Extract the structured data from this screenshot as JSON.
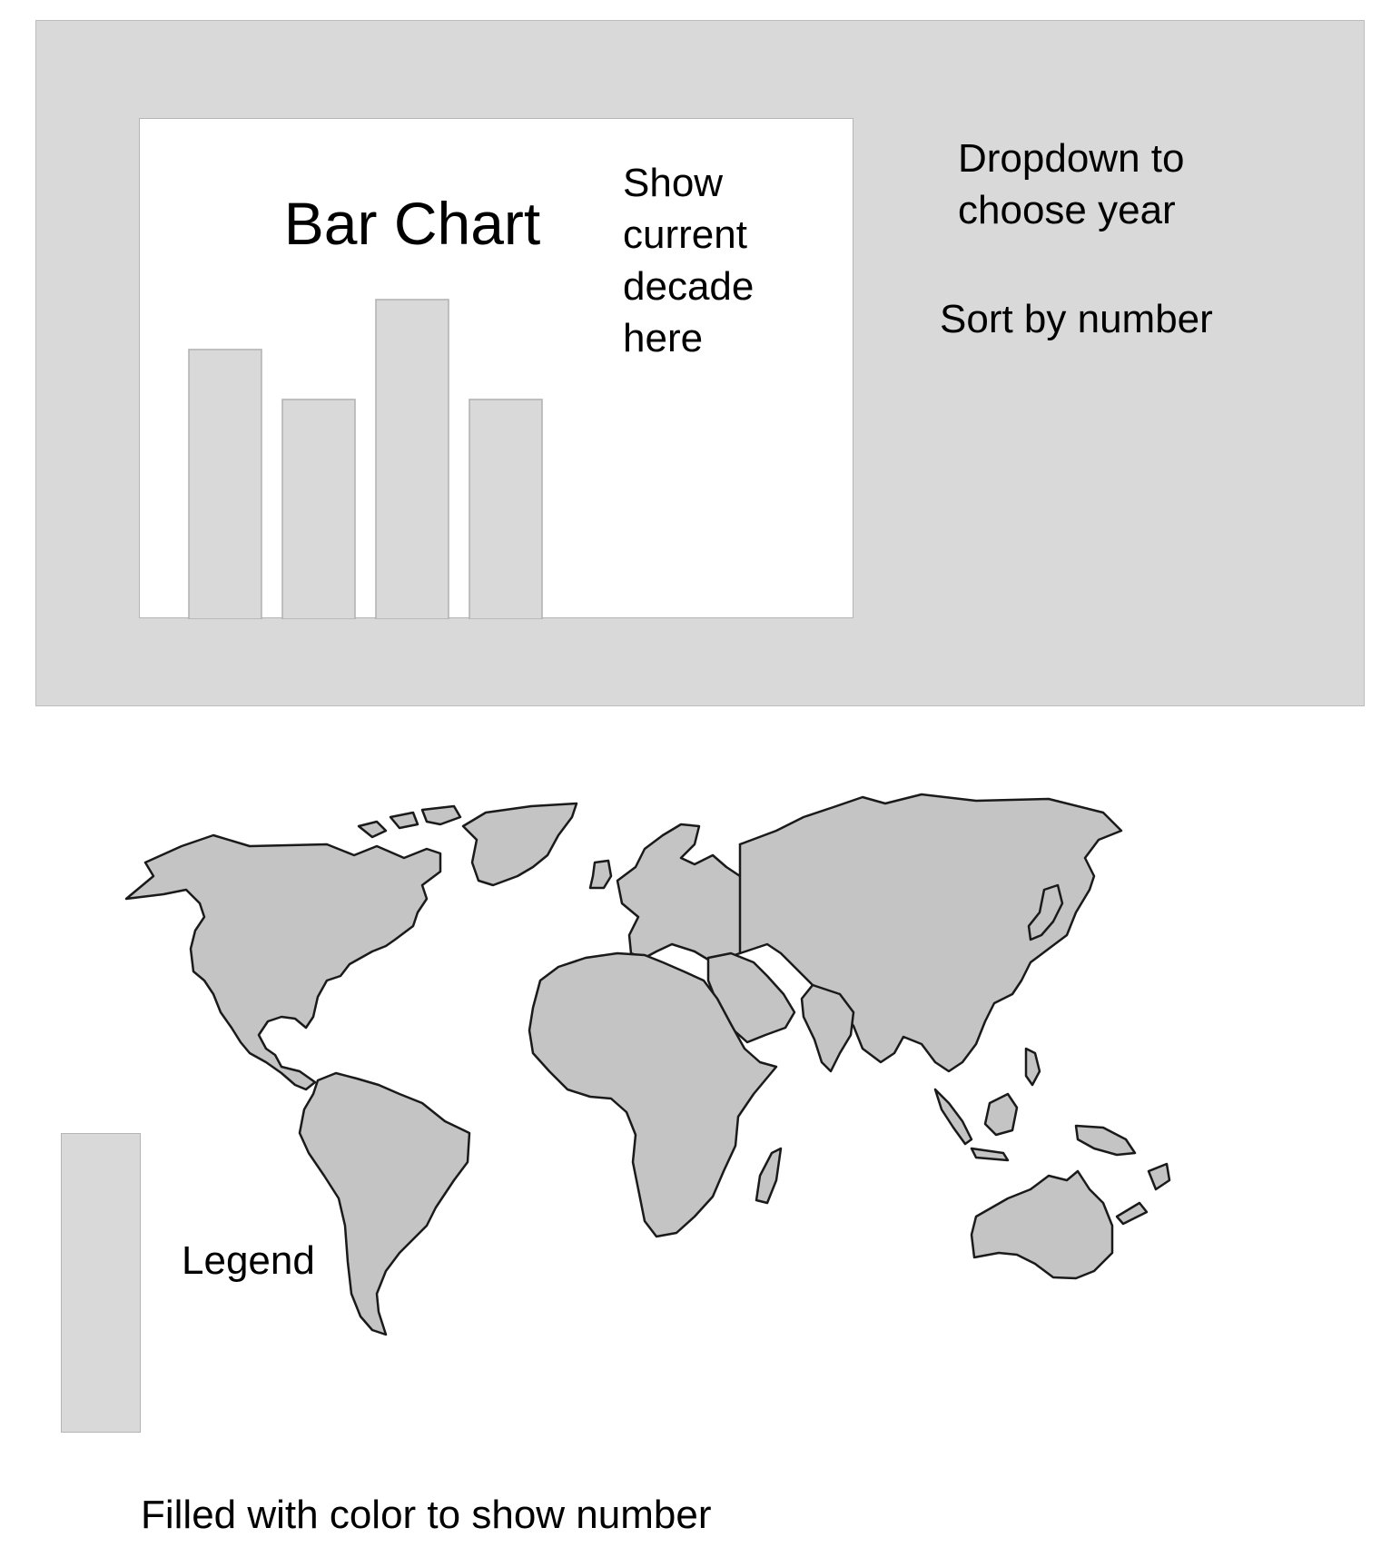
{
  "top_panel": {
    "chart": {
      "title": "Bar Chart",
      "decade_note": "Show\ncurrent\ndecade\nhere"
    },
    "year_dropdown_note": "Dropdown to\nchoose year",
    "sort_note": "Sort by number"
  },
  "map": {
    "legend_label": "Legend",
    "fill_caption": "Filled with color to show number"
  },
  "colors": {
    "panel": "#d9d9d9",
    "land": "#c4c4c4",
    "outline": "#1a1a1a"
  },
  "chart_data": {
    "type": "bar",
    "title": "Bar Chart",
    "categories": [
      "",
      "",
      "",
      ""
    ],
    "values": [
      5.4,
      4.4,
      6.4,
      4.4
    ],
    "ylim": [
      0,
      8
    ],
    "grid": false,
    "axes_shown": false
  }
}
